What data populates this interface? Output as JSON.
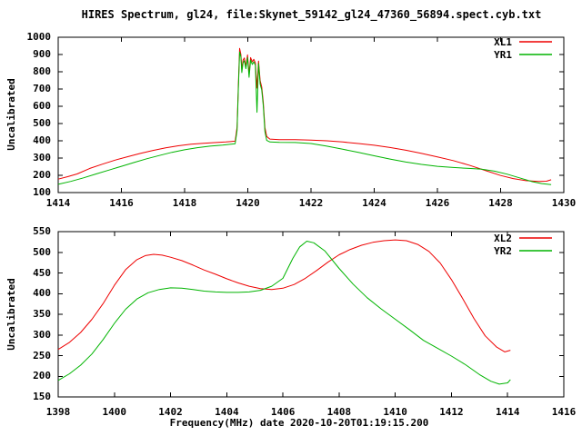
{
  "title": "HIRES Spectrum, gl24, file:Skynet_59142_gl24_47360_56894.spect.cyb.txt",
  "colors": {
    "background": "#ffffff",
    "axis": "#000000",
    "xl": "#ee0000",
    "yr": "#00b400"
  },
  "chart_data": [
    {
      "type": "line",
      "panel": "top",
      "ylabel": "Uncalibrated",
      "xlabel": "",
      "xlim": [
        1414,
        1430
      ],
      "ylim": [
        100,
        1000
      ],
      "xticks": [
        1414,
        1416,
        1418,
        1420,
        1422,
        1424,
        1426,
        1428,
        1430
      ],
      "yticks": [
        100,
        200,
        300,
        400,
        500,
        600,
        700,
        800,
        900,
        1000
      ],
      "grid": false,
      "legend_position": "top-right-inside",
      "series": [
        {
          "name": "XL1",
          "color": "#ee0000",
          "points": [
            [
              1414.0,
              178
            ],
            [
              1414.3,
              192
            ],
            [
              1414.6,
              208
            ],
            [
              1415.0,
              240
            ],
            [
              1415.4,
              265
            ],
            [
              1415.8,
              288
            ],
            [
              1416.2,
              308
            ],
            [
              1416.6,
              327
            ],
            [
              1417.0,
              344
            ],
            [
              1417.4,
              359
            ],
            [
              1417.8,
              371
            ],
            [
              1418.2,
              380
            ],
            [
              1418.6,
              386
            ],
            [
              1419.0,
              390
            ],
            [
              1419.3,
              393
            ],
            [
              1419.6,
              398
            ],
            [
              1419.66,
              480
            ],
            [
              1419.7,
              720
            ],
            [
              1419.74,
              935
            ],
            [
              1419.78,
              900
            ],
            [
              1419.81,
              815
            ],
            [
              1419.85,
              868
            ],
            [
              1419.89,
              880
            ],
            [
              1419.94,
              832
            ],
            [
              1419.99,
              898
            ],
            [
              1420.04,
              788
            ],
            [
              1420.09,
              882
            ],
            [
              1420.14,
              858
            ],
            [
              1420.19,
              872
            ],
            [
              1420.24,
              852
            ],
            [
              1420.29,
              705
            ],
            [
              1420.34,
              862
            ],
            [
              1420.39,
              748
            ],
            [
              1420.44,
              712
            ],
            [
              1420.49,
              625
            ],
            [
              1420.54,
              478
            ],
            [
              1420.6,
              425
            ],
            [
              1420.7,
              410
            ],
            [
              1421.0,
              407
            ],
            [
              1421.5,
              407
            ],
            [
              1422.0,
              404
            ],
            [
              1422.5,
              400
            ],
            [
              1423.0,
              393
            ],
            [
              1423.5,
              384
            ],
            [
              1424.0,
              374
            ],
            [
              1424.5,
              361
            ],
            [
              1425.0,
              345
            ],
            [
              1425.5,
              327
            ],
            [
              1426.0,
              307
            ],
            [
              1426.5,
              285
            ],
            [
              1427.0,
              259
            ],
            [
              1427.5,
              229
            ],
            [
              1428.0,
              199
            ],
            [
              1428.4,
              181
            ],
            [
              1428.8,
              169
            ],
            [
              1429.2,
              165
            ],
            [
              1429.45,
              166
            ],
            [
              1429.6,
              174
            ]
          ]
        },
        {
          "name": "YR1",
          "color": "#00b400",
          "points": [
            [
              1414.0,
              148
            ],
            [
              1414.4,
              165
            ],
            [
              1414.8,
              185
            ],
            [
              1415.2,
              208
            ],
            [
              1415.6,
              230
            ],
            [
              1416.0,
              252
            ],
            [
              1416.4,
              274
            ],
            [
              1416.8,
              296
            ],
            [
              1417.2,
              315
            ],
            [
              1417.6,
              333
            ],
            [
              1418.0,
              348
            ],
            [
              1418.4,
              360
            ],
            [
              1418.8,
              369
            ],
            [
              1419.2,
              375
            ],
            [
              1419.6,
              383
            ],
            [
              1419.66,
              460
            ],
            [
              1419.7,
              700
            ],
            [
              1419.74,
              915
            ],
            [
              1419.78,
              885
            ],
            [
              1419.81,
              795
            ],
            [
              1419.85,
              852
            ],
            [
              1419.89,
              865
            ],
            [
              1419.94,
              818
            ],
            [
              1419.99,
              882
            ],
            [
              1420.04,
              768
            ],
            [
              1420.09,
              868
            ],
            [
              1420.14,
              842
            ],
            [
              1420.19,
              858
            ],
            [
              1420.24,
              838
            ],
            [
              1420.29,
              565
            ],
            [
              1420.34,
              848
            ],
            [
              1420.39,
              728
            ],
            [
              1420.44,
              695
            ],
            [
              1420.49,
              605
            ],
            [
              1420.54,
              455
            ],
            [
              1420.6,
              402
            ],
            [
              1420.7,
              393
            ],
            [
              1421.0,
              391
            ],
            [
              1421.5,
              390
            ],
            [
              1422.0,
              384
            ],
            [
              1422.5,
              369
            ],
            [
              1423.0,
              351
            ],
            [
              1423.5,
              333
            ],
            [
              1424.0,
              313
            ],
            [
              1424.5,
              294
            ],
            [
              1425.0,
              277
            ],
            [
              1425.5,
              263
            ],
            [
              1426.0,
              252
            ],
            [
              1426.5,
              245
            ],
            [
              1427.0,
              240
            ],
            [
              1427.4,
              235
            ],
            [
              1427.8,
              224
            ],
            [
              1428.2,
              207
            ],
            [
              1428.6,
              185
            ],
            [
              1429.0,
              163
            ],
            [
              1429.3,
              152
            ],
            [
              1429.6,
              146
            ]
          ]
        }
      ]
    },
    {
      "type": "line",
      "panel": "bottom",
      "ylabel": "Uncalibrated",
      "xlabel": "Frequency(MHz) date 2020-10-20T01:19:15.200",
      "xlim": [
        1398,
        1416
      ],
      "ylim": [
        150,
        550
      ],
      "xticks": [
        1398,
        1400,
        1402,
        1404,
        1406,
        1408,
        1410,
        1412,
        1414,
        1416
      ],
      "yticks": [
        150,
        200,
        250,
        300,
        350,
        400,
        450,
        500,
        550
      ],
      "grid": false,
      "legend_position": "top-right-inside",
      "series": [
        {
          "name": "XL2",
          "color": "#ee0000",
          "points": [
            [
              1398.0,
              265
            ],
            [
              1398.4,
              282
            ],
            [
              1398.8,
              306
            ],
            [
              1399.2,
              338
            ],
            [
              1399.6,
              376
            ],
            [
              1400.0,
              420
            ],
            [
              1400.4,
              458
            ],
            [
              1400.8,
              482
            ],
            [
              1401.1,
              492
            ],
            [
              1401.4,
              495
            ],
            [
              1401.7,
              493
            ],
            [
              1402.0,
              488
            ],
            [
              1402.4,
              480
            ],
            [
              1402.8,
              469
            ],
            [
              1403.2,
              457
            ],
            [
              1403.6,
              447
            ],
            [
              1404.0,
              436
            ],
            [
              1404.4,
              426
            ],
            [
              1404.8,
              418
            ],
            [
              1405.2,
              412
            ],
            [
              1405.6,
              410
            ],
            [
              1406.0,
              413
            ],
            [
              1406.4,
              422
            ],
            [
              1406.8,
              437
            ],
            [
              1407.2,
              456
            ],
            [
              1407.6,
              476
            ],
            [
              1408.0,
              494
            ],
            [
              1408.4,
              507
            ],
            [
              1408.8,
              517
            ],
            [
              1409.2,
              524
            ],
            [
              1409.6,
              528
            ],
            [
              1410.0,
              530
            ],
            [
              1410.4,
              528
            ],
            [
              1410.8,
              519
            ],
            [
              1411.2,
              502
            ],
            [
              1411.6,
              474
            ],
            [
              1412.0,
              434
            ],
            [
              1412.4,
              388
            ],
            [
              1412.8,
              340
            ],
            [
              1413.2,
              298
            ],
            [
              1413.6,
              271
            ],
            [
              1413.9,
              259
            ],
            [
              1414.1,
              263
            ]
          ]
        },
        {
          "name": "YR2",
          "color": "#00b400",
          "points": [
            [
              1398.0,
              190
            ],
            [
              1398.4,
              206
            ],
            [
              1398.8,
              227
            ],
            [
              1399.2,
              254
            ],
            [
              1399.6,
              289
            ],
            [
              1400.0,
              328
            ],
            [
              1400.4,
              362
            ],
            [
              1400.8,
              387
            ],
            [
              1401.2,
              402
            ],
            [
              1401.6,
              410
            ],
            [
              1402.0,
              414
            ],
            [
              1402.4,
              413
            ],
            [
              1402.8,
              410
            ],
            [
              1403.2,
              406
            ],
            [
              1403.6,
              404
            ],
            [
              1404.0,
              403
            ],
            [
              1404.4,
              403
            ],
            [
              1404.8,
              404
            ],
            [
              1405.2,
              408
            ],
            [
              1405.6,
              418
            ],
            [
              1406.0,
              437
            ],
            [
              1406.35,
              485
            ],
            [
              1406.6,
              513
            ],
            [
              1406.85,
              527
            ],
            [
              1407.1,
              523
            ],
            [
              1407.5,
              503
            ],
            [
              1408.0,
              461
            ],
            [
              1408.5,
              423
            ],
            [
              1409.0,
              390
            ],
            [
              1409.5,
              363
            ],
            [
              1410.0,
              338
            ],
            [
              1410.5,
              313
            ],
            [
              1411.0,
              287
            ],
            [
              1411.5,
              268
            ],
            [
              1412.0,
              249
            ],
            [
              1412.5,
              228
            ],
            [
              1413.0,
              204
            ],
            [
              1413.4,
              188
            ],
            [
              1413.7,
              181
            ],
            [
              1414.0,
              184
            ],
            [
              1414.1,
              192
            ]
          ]
        }
      ]
    }
  ]
}
